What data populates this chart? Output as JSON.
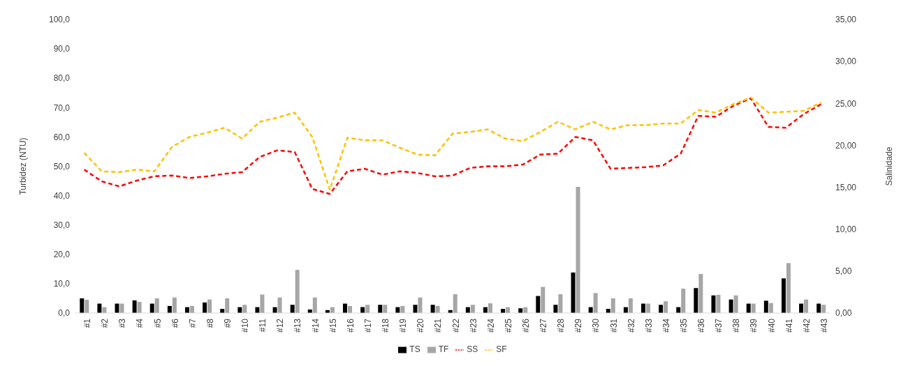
{
  "chart_data": {
    "type": "bar",
    "ylabel": "Turbidez (NTU)",
    "y2label": "Salinidade",
    "categories": [
      "#1",
      "#2",
      "#3",
      "#4",
      "#5",
      "#6",
      "#7",
      "#8",
      "#9",
      "#10",
      "#11",
      "#12",
      "#13",
      "#14",
      "#15",
      "#16",
      "#17",
      "#18",
      "#19",
      "#20",
      "#21",
      "#22",
      "#23",
      "#24",
      "#25",
      "#26",
      "#27",
      "#28",
      "#29",
      "#30",
      "#31",
      "#32",
      "#33",
      "#34",
      "#35",
      "#36",
      "#37",
      "#38",
      "#39",
      "#40",
      "#41",
      "#42",
      "#43"
    ],
    "series": [
      {
        "name": "TS",
        "color": "#000000",
        "values": [
          5.0,
          3.2,
          3.2,
          4.3,
          3.2,
          2.4,
          2.0,
          3.6,
          1.4,
          2.0,
          2.0,
          2.0,
          2.8,
          1.2,
          1.0,
          3.2,
          2.0,
          2.8,
          2.0,
          2.8,
          2.8,
          1.0,
          2.0,
          2.0,
          1.4,
          1.6,
          5.8,
          2.8,
          13.8,
          2.0,
          1.4,
          2.0,
          3.2,
          2.8,
          2.0,
          8.5,
          6.0,
          4.6,
          3.2,
          4.2,
          11.8,
          3.2,
          3.2
        ]
      },
      {
        "name": "TF",
        "color": "#a6a6a6",
        "values": [
          4.5,
          2.0,
          3.2,
          3.8,
          5.0,
          5.3,
          2.4,
          4.6,
          5.0,
          2.8,
          6.3,
          5.3,
          14.7,
          5.3,
          2.0,
          2.4,
          2.8,
          2.8,
          2.4,
          5.3,
          2.4,
          6.4,
          2.8,
          3.3,
          2.0,
          2.0,
          8.9,
          6.4,
          43.0,
          6.8,
          5.0,
          5.0,
          3.2,
          4.0,
          8.3,
          13.3,
          6.2,
          6.0,
          3.2,
          3.4,
          17.0,
          4.6,
          2.8
        ]
      },
      {
        "name": "SS",
        "type": "line",
        "axis": "y2",
        "color": "#ff0000",
        "line_style": "dashed",
        "marker": "none",
        "values": [
          17.1,
          15.7,
          15.1,
          15.8,
          16.3,
          16.4,
          16.1,
          16.3,
          16.6,
          16.8,
          18.6,
          19.4,
          19.2,
          14.8,
          14.2,
          16.9,
          17.2,
          16.5,
          16.9,
          16.7,
          16.3,
          16.4,
          17.3,
          17.5,
          17.5,
          17.7,
          18.9,
          19.0,
          21.0,
          20.6,
          17.2,
          17.3,
          17.4,
          17.6,
          19.0,
          23.5,
          23.4,
          24.7,
          25.6,
          22.2,
          22.1,
          23.7,
          24.9
        ]
      },
      {
        "name": "SF",
        "type": "line",
        "axis": "y2",
        "color": "#ffc000",
        "line_style": "dashed",
        "marker": "none",
        "values": [
          19.1,
          16.9,
          16.8,
          17.1,
          16.9,
          19.8,
          21.0,
          21.5,
          22.1,
          20.8,
          22.8,
          23.3,
          23.9,
          21.0,
          14.7,
          20.9,
          20.6,
          20.6,
          19.7,
          18.9,
          18.8,
          21.4,
          21.6,
          21.9,
          20.8,
          20.5,
          21.6,
          22.8,
          21.9,
          22.8,
          21.9,
          22.4,
          22.4,
          22.6,
          22.6,
          24.2,
          23.9,
          24.9,
          25.7,
          23.9,
          24.0,
          24.1,
          25.1
        ]
      }
    ],
    "ylim": [
      0,
      100
    ],
    "yticks": [
      {
        "value": 0,
        "label": "0,0"
      },
      {
        "value": 10,
        "label": "10,0"
      },
      {
        "value": 20,
        "label": "20,0"
      },
      {
        "value": 30,
        "label": "30,0"
      },
      {
        "value": 40,
        "label": "40,0"
      },
      {
        "value": 50,
        "label": "50,0"
      },
      {
        "value": 60,
        "label": "60,0"
      },
      {
        "value": 70,
        "label": "70,0"
      },
      {
        "value": 80,
        "label": "80,0"
      },
      {
        "value": 90,
        "label": "90,0"
      },
      {
        "value": 100,
        "label": "100,0"
      }
    ],
    "y2lim": [
      0,
      35
    ],
    "y2ticks": [
      {
        "value": 0,
        "label": "0,00"
      },
      {
        "value": 5,
        "label": "5,00"
      },
      {
        "value": 10,
        "label": "10,00"
      },
      {
        "value": 15,
        "label": "15,00"
      },
      {
        "value": 20,
        "label": "20,00"
      },
      {
        "value": 25,
        "label": "25,00"
      },
      {
        "value": 30,
        "label": "30,00"
      },
      {
        "value": 35,
        "label": "35,00"
      }
    ],
    "grid": false,
    "legend": "bottom"
  }
}
